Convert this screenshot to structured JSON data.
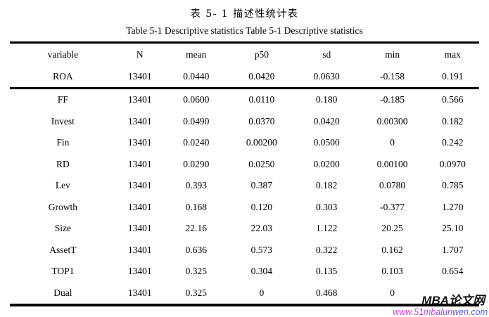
{
  "titles": {
    "chinese": "表 5- 1 描述性统计表",
    "english": "Table 5-1 Descriptive statistics Table 5-1 Descriptive statistics"
  },
  "table": {
    "columns": [
      "variable",
      "N",
      "mean",
      "p50",
      "sd",
      "min",
      "max"
    ],
    "head_rows": [
      [
        "ROA",
        "13401",
        "0.0440",
        "0.0420",
        "0.0630",
        "-0.158",
        "0.191"
      ]
    ],
    "rows": [
      [
        "FF",
        "13401",
        "0.0600",
        "0.0110",
        "0.180",
        "-0.185",
        "0.566"
      ],
      [
        "Invest",
        "13401",
        "0.0490",
        "0.0370",
        "0.0420",
        "0.00300",
        "0.182"
      ],
      [
        "Fin",
        "13401",
        "0.0240",
        "0.00200",
        "0.0500",
        "0",
        "0.242"
      ],
      [
        "RD",
        "13401",
        "0.0290",
        "0.0250",
        "0.0200",
        "0.00100",
        "0.0970"
      ],
      [
        "Lev",
        "13401",
        "0.393",
        "0.387",
        "0.182",
        "0.0780",
        "0.785"
      ],
      [
        "Growth",
        "13401",
        "0.168",
        "0.120",
        "0.303",
        "-0.377",
        "1.270"
      ],
      [
        "Size",
        "13401",
        "22.16",
        "22.03",
        "1.122",
        "20.25",
        "25.10"
      ],
      [
        "AssetT",
        "13401",
        "0.636",
        "0.573",
        "0.322",
        "0.162",
        "1.707"
      ],
      [
        "TOP1",
        "13401",
        "0.325",
        "0.304",
        "0.135",
        "0.103",
        "0.654"
      ],
      [
        "Dual",
        "13401",
        "0.325",
        "0",
        "0.468",
        "0",
        ""
      ]
    ],
    "column_widths_pct": [
      22.6,
      10.2,
      13.8,
      14.1,
      13.6,
      14.4,
      11.3
    ]
  },
  "watermark": {
    "brand": "MBA论文网",
    "url": "www.51mbalunwen.com",
    "brand_color": "#111111",
    "url_gradient_start": "#e83ecb",
    "url_gradient_end": "#2f6fe0"
  }
}
